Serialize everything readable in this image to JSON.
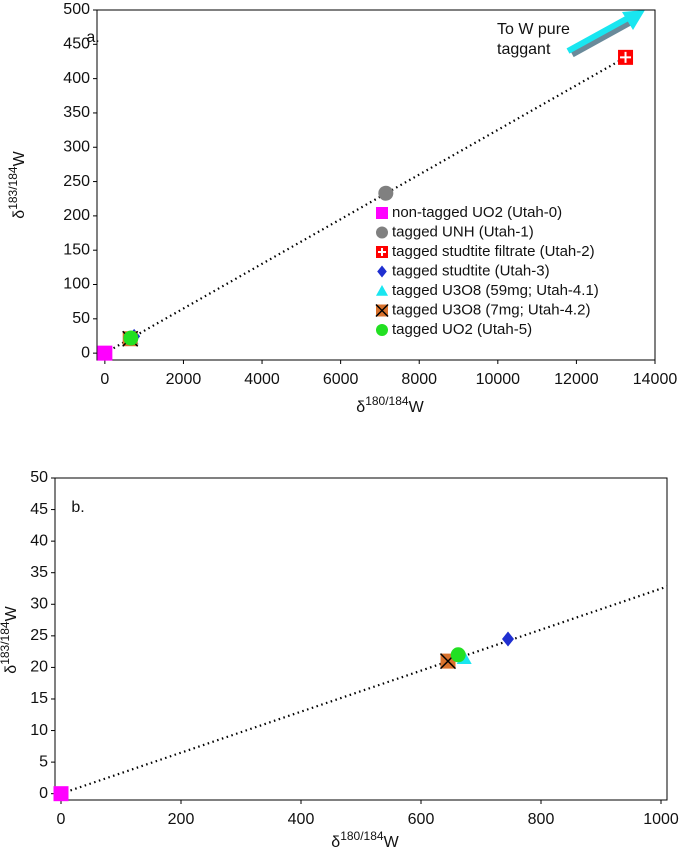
{
  "chart_data": [
    {
      "type": "scatter",
      "panel_label": "a.",
      "x_label": [
        "δ",
        "180/184",
        "W"
      ],
      "y_label": [
        "δ",
        "183/184",
        "W"
      ],
      "xlim": [
        -200,
        14000
      ],
      "ylim": [
        -10,
        500
      ],
      "xticks": [
        0,
        2000,
        4000,
        6000,
        8000,
        10000,
        12000,
        14000
      ],
      "yticks": [
        0,
        50,
        100,
        150,
        200,
        250,
        300,
        350,
        400,
        450,
        500
      ],
      "legend": "right",
      "annotation": [
        "To W pure",
        "taggant"
      ],
      "trendline": {
        "x": [
          0,
          13250
        ],
        "y": [
          0,
          431
        ],
        "color": "#000000"
      },
      "series": [
        {
          "name": "non-tagged UO2 (Utah-0)",
          "marker": "square",
          "color": "#ff00ff",
          "x": [
            0
          ],
          "y": [
            0
          ]
        },
        {
          "name": "tagged UNH (Utah-1)",
          "marker": "circle",
          "color": "#808080",
          "x": [
            7150
          ],
          "y": [
            233
          ]
        },
        {
          "name": "tagged studtite filtrate (Utah-2)",
          "marker": "cross-square",
          "color": "#ff0000",
          "x": [
            13250
          ],
          "y": [
            431
          ]
        },
        {
          "name": "tagged studtite (Utah-3)",
          "marker": "diamond",
          "color": "#1f2fd0",
          "x": [
            745
          ],
          "y": [
            24.5
          ]
        },
        {
          "name": "tagged U3O8 (59mg; Utah-4.1)",
          "marker": "triangle",
          "color": "#19e6f0",
          "x": [
            672
          ],
          "y": [
            21.5
          ]
        },
        {
          "name": "tagged U3O8 (7mg; Utah-4.2)",
          "marker": "x-square",
          "color": "#d9722d",
          "x": [
            645
          ],
          "y": [
            21
          ]
        },
        {
          "name": "tagged UO2 (Utah-5)",
          "marker": "circle",
          "color": "#22e022",
          "x": [
            662
          ],
          "y": [
            22
          ]
        }
      ]
    },
    {
      "type": "scatter",
      "panel_label": "b.",
      "x_label": [
        "δ",
        "180/184",
        "W"
      ],
      "y_label": [
        "δ",
        "183/184",
        "W"
      ],
      "xlim": [
        -10,
        1010
      ],
      "ylim": [
        -1,
        50
      ],
      "xticks": [
        0,
        200,
        400,
        600,
        800,
        1000
      ],
      "yticks": [
        0,
        5,
        10,
        15,
        20,
        25,
        30,
        35,
        40,
        45,
        50
      ],
      "trendline": {
        "x": [
          0,
          1010
        ],
        "y": [
          0,
          32.8
        ],
        "color": "#000000"
      },
      "series": [
        {
          "marker": "square",
          "color": "#ff00ff",
          "x": [
            0
          ],
          "y": [
            0
          ]
        },
        {
          "marker": "diamond",
          "color": "#1f2fd0",
          "x": [
            745
          ],
          "y": [
            24.5
          ]
        },
        {
          "marker": "triangle",
          "color": "#19e6f0",
          "x": [
            672
          ],
          "y": [
            21.5
          ]
        },
        {
          "marker": "x-square",
          "color": "#d9722d",
          "x": [
            645
          ],
          "y": [
            21
          ]
        },
        {
          "marker": "circle",
          "color": "#22e022",
          "x": [
            662
          ],
          "y": [
            22
          ]
        }
      ]
    }
  ]
}
